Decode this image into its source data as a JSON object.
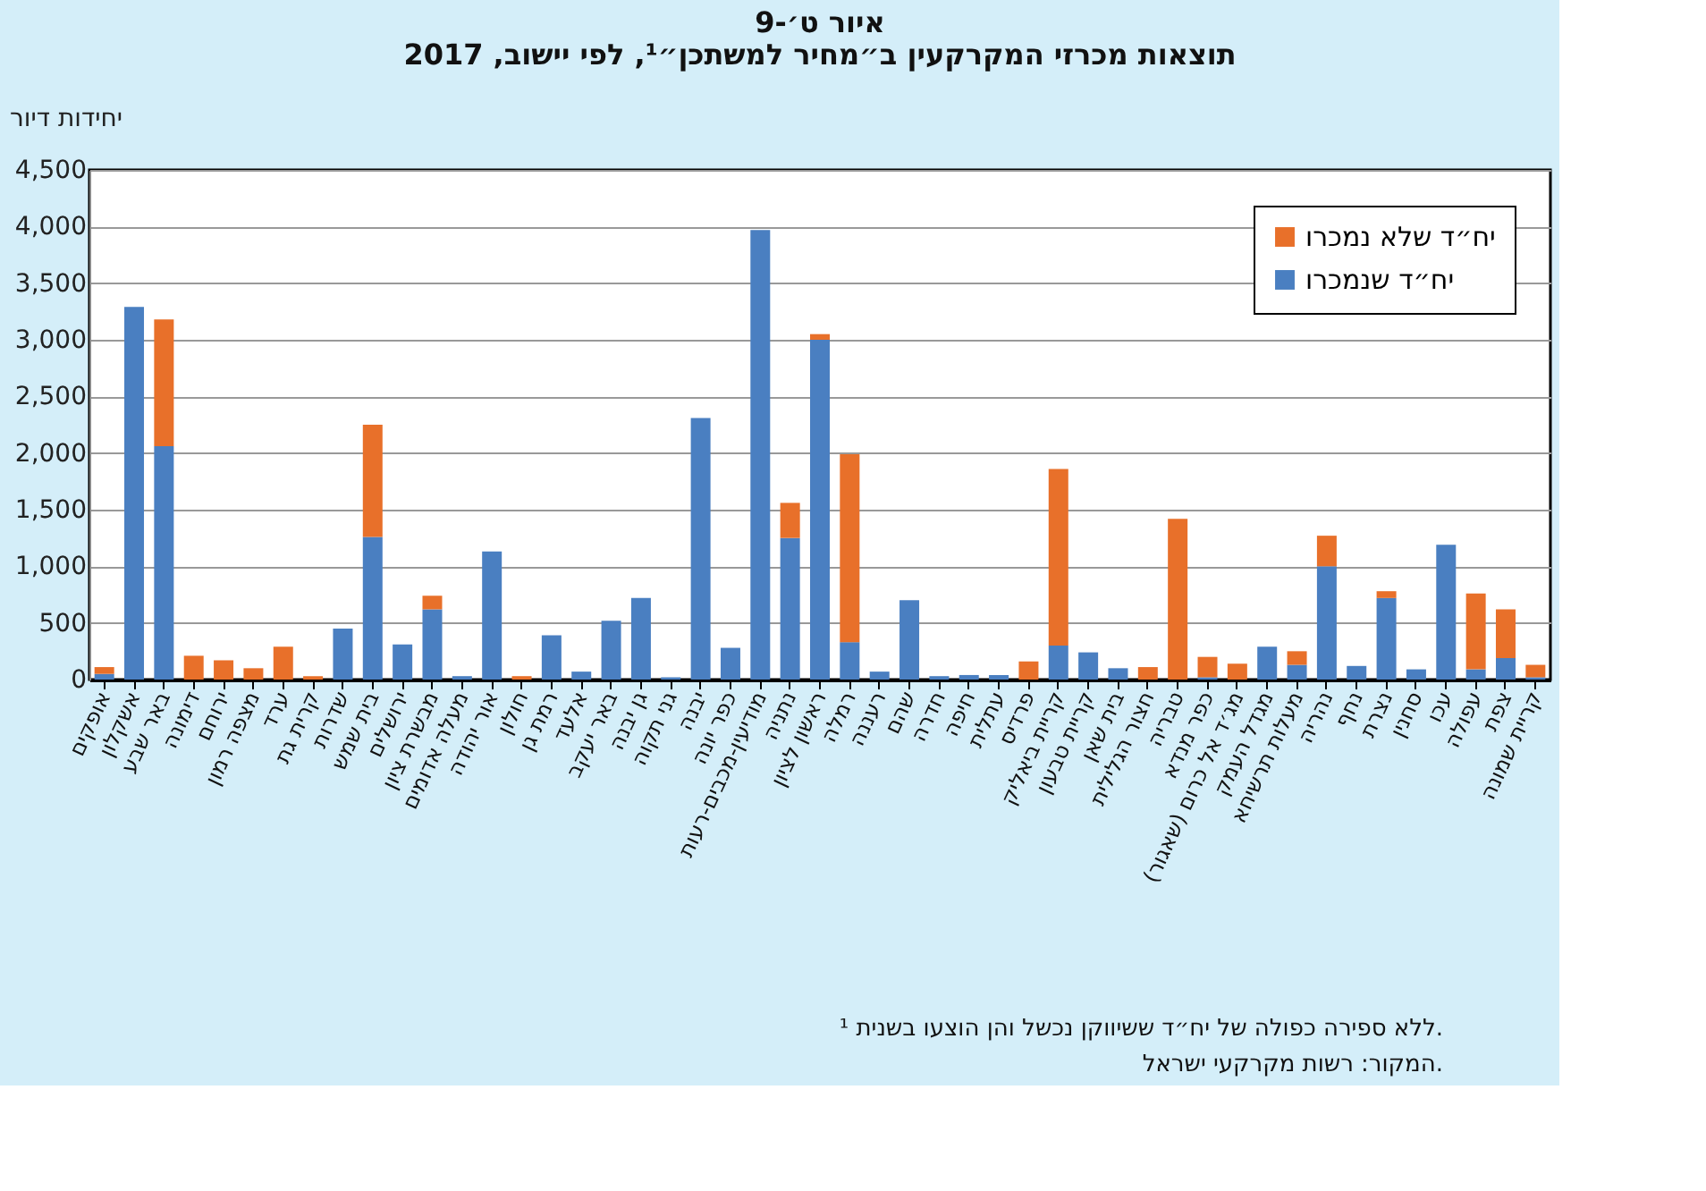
{
  "chart_data": {
    "type": "bar",
    "title": [
      "איור ט׳-9",
      "תוצאות מכרזי המקרקעין ב״מחיר למשתכן״¹, לפי יישוב, 2017"
    ],
    "ylabel": "יחידות דיור",
    "categories": [
      "אופקים",
      "אשקלון",
      "באר שבע",
      "דימונה",
      "ירוחם",
      "מצפה רמון",
      "ערד",
      "קרית גת",
      "שדרות",
      "בית שמש",
      "ירושלים",
      "מבשרת ציון",
      "מעלה אדומים",
      "אור יהודה",
      "חולון",
      "רמת גן",
      "אלעד",
      "באר יעקב",
      "גן יבנה",
      "גני תקוה",
      "יבנה",
      "כפר יונה",
      "מודיעין-מכבים-רעות",
      "נתניה",
      "ראשון לציון",
      "רמלה",
      "רעננה",
      "שהם",
      "חדרה",
      "חיפה",
      "עתלית",
      "פרדיס",
      "קריית ביאליק",
      "קריית טבעון",
      "בית שאן",
      "חצור הגלילית",
      "טבריה",
      "כפר מנדא",
      "מג׳ד אל כרום (שאגור)",
      "מגדל העמק",
      "מעלות תרשיחא",
      "נהריה",
      "נחף",
      "נצרת",
      "סחנין",
      "עכו",
      "עפולה",
      "צפת",
      "קריית שמונה"
    ],
    "stacked": true,
    "series": [
      {
        "name": "יח״ד שנמכרו",
        "color": "#4a7fc1",
        "values": [
          50,
          3290,
          2060,
          0,
          0,
          0,
          0,
          0,
          450,
          1260,
          310,
          620,
          30,
          1130,
          0,
          390,
          70,
          520,
          720,
          20,
          2310,
          280,
          3970,
          1250,
          3000,
          330,
          70,
          700,
          30,
          40,
          40,
          0,
          300,
          240,
          100,
          0,
          0,
          20,
          0,
          290,
          130,
          1000,
          120,
          720,
          90,
          1190,
          90,
          190,
          20
        ]
      },
      {
        "name": "יח״ד שלא נמכרו",
        "color": "#e8702a",
        "values": [
          60,
          0,
          1120,
          210,
          170,
          100,
          290,
          30,
          0,
          990,
          0,
          120,
          0,
          0,
          30,
          0,
          0,
          0,
          0,
          0,
          0,
          0,
          0,
          310,
          50,
          1660,
          0,
          0,
          0,
          0,
          0,
          160,
          1560,
          0,
          0,
          110,
          1420,
          180,
          140,
          0,
          120,
          270,
          0,
          60,
          0,
          0,
          670,
          430,
          110
        ]
      }
    ],
    "ylim": [
      0,
      4500
    ],
    "yticks": [
      0,
      500,
      {
        "value": 1000,
        "label": "1,000"
      },
      {
        "value": 1500,
        "label": "1,500"
      },
      {
        "value": 2000,
        "label": "2,000"
      },
      {
        "value": 2500,
        "label": "2,500"
      },
      {
        "value": 3000,
        "label": "3,000"
      },
      {
        "value": 3500,
        "label": "3,500"
      },
      {
        "value": 4000,
        "label": "4,000"
      },
      {
        "value": 4500,
        "label": "4,500"
      }
    ],
    "grid": "y",
    "legend": "top right",
    "annotations": [
      "¹ ללא ספירה כפולה של יח״ד ששיווקן נכשל והן הוצעו בשנית.",
      "המקור: רשות מקרקעי ישראל."
    ]
  }
}
